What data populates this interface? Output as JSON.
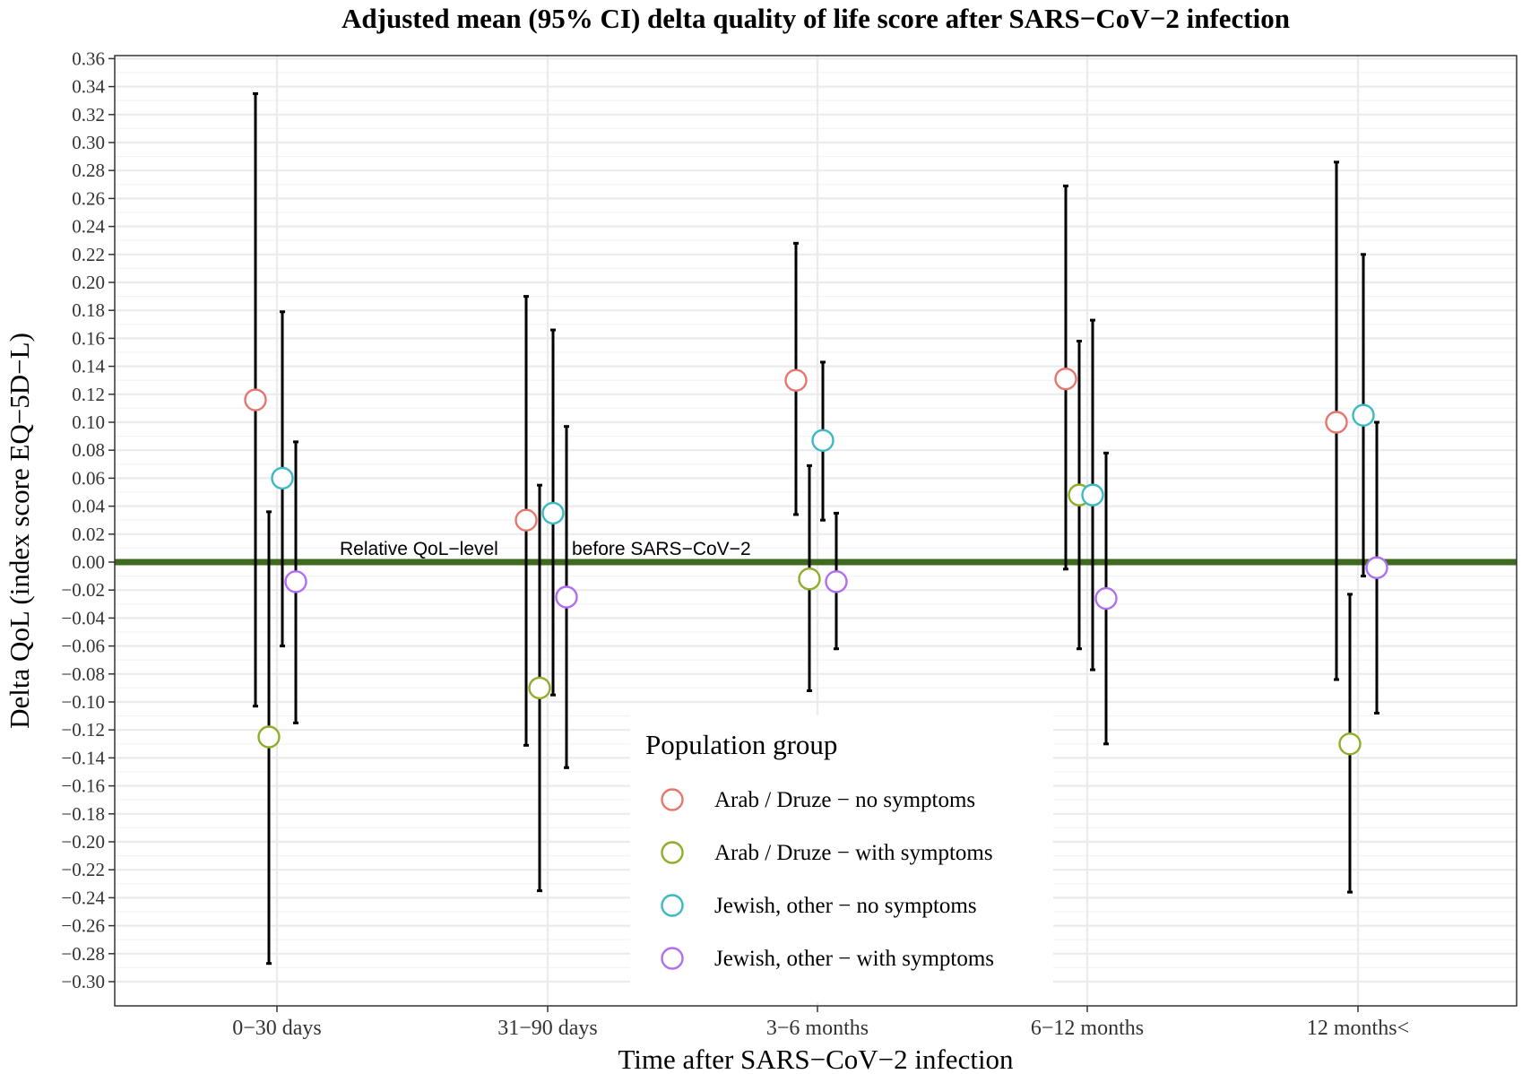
{
  "chart_data": {
    "type": "scatter",
    "title": "Adjusted mean (95% CI) delta quality of life score after SARS−CoV−2 infection",
    "xlabel": "Time after SARS−CoV−2 infection",
    "ylabel": "Delta QoL (index score EQ−5D−L)",
    "categories": [
      "0−30 days",
      "31−90 days",
      "3−6 months",
      "6−12 months",
      "12 months<"
    ],
    "ylim": [
      -0.32,
      0.365
    ],
    "yticks": [
      0.36,
      0.34,
      0.32,
      0.3,
      0.28,
      0.26,
      0.24,
      0.22,
      0.2,
      0.18,
      0.16,
      0.14,
      0.12,
      0.1,
      0.08,
      0.06,
      0.04,
      0.02,
      0.0,
      -0.02,
      -0.04,
      -0.06,
      -0.08,
      -0.1,
      -0.12,
      -0.14,
      -0.16,
      -0.18,
      -0.2,
      -0.22,
      -0.24,
      -0.26,
      -0.28,
      -0.3
    ],
    "ytick_labels": [
      "0.36",
      "0.34",
      "0.32",
      "0.30",
      "0.28",
      "0.26",
      "0.24",
      "0.22",
      "0.20",
      "0.18",
      "0.16",
      "0.14",
      "0.12",
      "0.10",
      "0.08",
      "0.06",
      "0.04",
      "0.02",
      "0.00",
      "−0.02",
      "−0.04",
      "−0.06",
      "−0.08",
      "−0.10",
      "−0.12",
      "−0.14",
      "−0.16",
      "−0.18",
      "−0.20",
      "−0.22",
      "−0.24",
      "−0.26",
      "−0.28",
      "−0.30"
    ],
    "grid": true,
    "reference_line": {
      "y": 0.0,
      "label_left": "Relative QoL−level",
      "label_right": "before SARS−CoV−2",
      "color": "#3f6b21"
    },
    "legend": {
      "title": "Population group",
      "position": "bottom-center"
    },
    "series": [
      {
        "name": "Arab / Druze − no symptoms",
        "color": "#e5776e",
        "mean": [
          0.116,
          0.03,
          0.13,
          0.131,
          0.1
        ],
        "lower": [
          -0.103,
          -0.131,
          0.034,
          -0.005,
          -0.084
        ],
        "upper": [
          0.335,
          0.19,
          0.228,
          0.269,
          0.286
        ]
      },
      {
        "name": "Arab / Druze − with symptoms",
        "color": "#8fae2b",
        "mean": [
          -0.125,
          -0.09,
          -0.012,
          0.048,
          -0.13
        ],
        "lower": [
          -0.287,
          -0.235,
          -0.092,
          -0.062,
          -0.236
        ],
        "upper": [
          0.036,
          0.055,
          0.069,
          0.158,
          -0.023
        ]
      },
      {
        "name": "Jewish, other − no symptoms",
        "color": "#3cb9c2",
        "mean": [
          0.06,
          0.035,
          0.087,
          0.048,
          0.105
        ],
        "lower": [
          -0.06,
          -0.095,
          0.03,
          -0.077,
          -0.01
        ],
        "upper": [
          0.179,
          0.166,
          0.143,
          0.173,
          0.22
        ]
      },
      {
        "name": "Jewish, other − with symptoms",
        "color": "#b16ff0",
        "mean": [
          -0.014,
          -0.025,
          -0.014,
          -0.026,
          -0.004
        ],
        "lower": [
          -0.115,
          -0.147,
          -0.062,
          -0.13,
          -0.108
        ],
        "upper": [
          0.086,
          0.097,
          0.035,
          0.078,
          0.1
        ]
      }
    ]
  }
}
